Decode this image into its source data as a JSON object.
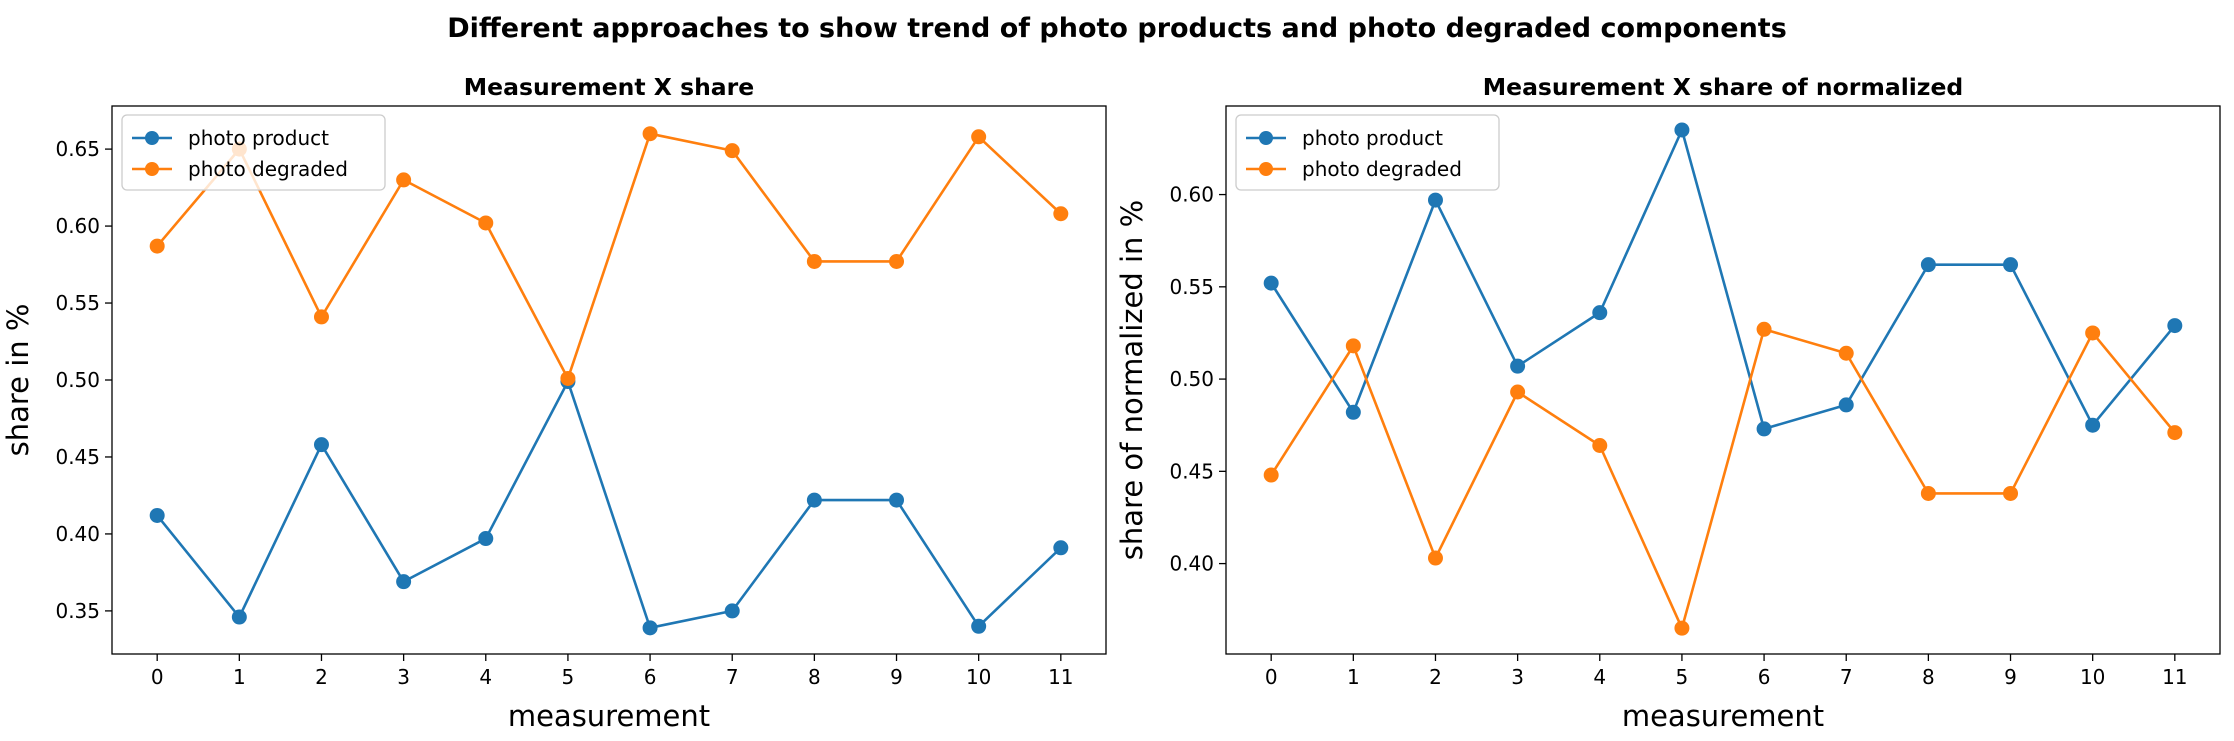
{
  "figure": {
    "suptitle": "Different approaches to show trend of photo products and photo degraded components"
  },
  "chart_data": [
    {
      "type": "line",
      "title": "Measurement X share",
      "xlabel": "measurement",
      "ylabel": "share in %",
      "x": [
        0,
        1,
        2,
        3,
        4,
        5,
        6,
        7,
        8,
        9,
        10,
        11
      ],
      "xticks": [
        "0",
        "1",
        "2",
        "3",
        "4",
        "5",
        "6",
        "7",
        "8",
        "9",
        "10",
        "11"
      ],
      "ylim": [
        0.322,
        0.678
      ],
      "yticks": [
        0.35,
        0.4,
        0.45,
        0.5,
        0.55,
        0.6,
        0.65
      ],
      "ytick_labels": [
        "0.35",
        "0.40",
        "0.45",
        "0.50",
        "0.55",
        "0.60",
        "0.65"
      ],
      "grid": false,
      "legend_loc": "upper-left",
      "marker": "circle",
      "series": [
        {
          "name": "photo product",
          "color": "#1f77b4",
          "values": [
            0.412,
            0.346,
            0.458,
            0.369,
            0.397,
            0.499,
            0.339,
            0.35,
            0.422,
            0.422,
            0.34,
            0.391
          ]
        },
        {
          "name": "photo degraded",
          "color": "#ff7f0e",
          "values": [
            0.587,
            0.65,
            0.541,
            0.63,
            0.602,
            0.501,
            0.66,
            0.649,
            0.577,
            0.577,
            0.658,
            0.608
          ]
        }
      ]
    },
    {
      "type": "line",
      "title": "Measurement X share of normalized",
      "xlabel": "measurement",
      "ylabel": "share of normalized in %",
      "x": [
        0,
        1,
        2,
        3,
        4,
        5,
        6,
        7,
        8,
        9,
        10,
        11
      ],
      "xticks": [
        "0",
        "1",
        "2",
        "3",
        "4",
        "5",
        "6",
        "7",
        "8",
        "9",
        "10",
        "11"
      ],
      "ylim": [
        0.351,
        0.648
      ],
      "yticks": [
        0.4,
        0.45,
        0.5,
        0.55,
        0.6
      ],
      "ytick_labels": [
        "0.40",
        "0.45",
        "0.50",
        "0.55",
        "0.60"
      ],
      "grid": false,
      "legend_loc": "upper-left",
      "marker": "circle",
      "series": [
        {
          "name": "photo product",
          "color": "#1f77b4",
          "values": [
            0.552,
            0.482,
            0.597,
            0.507,
            0.536,
            0.635,
            0.473,
            0.486,
            0.562,
            0.562,
            0.475,
            0.529
          ]
        },
        {
          "name": "photo degraded",
          "color": "#ff7f0e",
          "values": [
            0.448,
            0.518,
            0.403,
            0.493,
            0.464,
            0.365,
            0.527,
            0.514,
            0.438,
            0.438,
            0.525,
            0.471
          ]
        }
      ]
    }
  ]
}
